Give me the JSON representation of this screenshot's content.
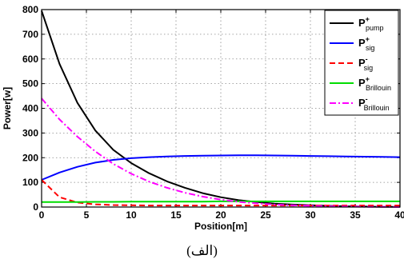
{
  "caption": "(الف)",
  "chart_data": {
    "type": "line",
    "xlabel": "Position[m]",
    "ylabel": "Power[w]",
    "xlim": [
      0,
      40
    ],
    "ylim": [
      0,
      800
    ],
    "xticks": [
      0,
      5,
      10,
      15,
      20,
      25,
      30,
      35,
      40
    ],
    "yticks": [
      0,
      100,
      200,
      300,
      400,
      500,
      600,
      700,
      800
    ],
    "grid": true,
    "legend_position": "top-right",
    "x": [
      0,
      2,
      4,
      6,
      8,
      10,
      12,
      14,
      16,
      18,
      20,
      22,
      24,
      26,
      28,
      30,
      32,
      34,
      36,
      38,
      40
    ],
    "series": [
      {
        "name": "P+pump",
        "legend_main": "P",
        "legend_sup": "+",
        "legend_sub": "pump",
        "color": "#000000",
        "dash": "solid",
        "values": [
          795,
          580,
          422,
          310,
          232,
          178,
          137,
          104,
          78,
          56,
          40,
          28,
          20,
          14,
          10,
          7,
          5,
          3,
          2,
          1,
          1
        ]
      },
      {
        "name": "P+sig",
        "legend_main": "P",
        "legend_sup": "+",
        "legend_sub": "sig",
        "color": "#0000ff",
        "dash": "solid",
        "values": [
          110,
          140,
          163,
          180,
          191,
          198,
          202,
          205,
          207,
          208,
          209,
          210,
          210,
          209,
          208,
          207,
          206,
          205,
          204,
          203,
          202
        ]
      },
      {
        "name": "P-sig",
        "legend_main": "P",
        "legend_sup": "-",
        "legend_sub": "sig",
        "color": "#ff0000",
        "dash": "dashed",
        "values": [
          110,
          40,
          18,
          11,
          8,
          7,
          6,
          6,
          6,
          6,
          6,
          6,
          6,
          6,
          6,
          6,
          6,
          6,
          6,
          6,
          6
        ]
      },
      {
        "name": "P+Brillouin",
        "legend_main": "P",
        "legend_sup": "+",
        "legend_sub": "Brillouin",
        "color": "#00dd00",
        "dash": "solid",
        "values": [
          20,
          20,
          20,
          21,
          21,
          22,
          22,
          22,
          22,
          22,
          23,
          23,
          23,
          23,
          23,
          23,
          23,
          23,
          23,
          23,
          23
        ]
      },
      {
        "name": "P-Brillouin",
        "legend_main": "P",
        "legend_sup": "-",
        "legend_sub": "Brillouin",
        "color": "#ff00ff",
        "dash": "dashdot",
        "values": [
          440,
          355,
          285,
          225,
          175,
          135,
          103,
          78,
          58,
          42,
          30,
          21,
          15,
          10,
          7,
          5,
          3,
          2,
          1,
          1,
          0
        ]
      }
    ]
  }
}
